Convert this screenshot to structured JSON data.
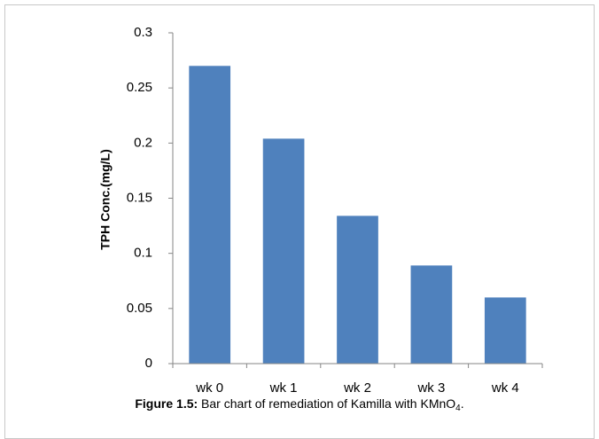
{
  "chart_data": {
    "type": "bar",
    "y_label": "TPH  Conc.(mg/L)",
    "categories": [
      "wk 0",
      "wk 1",
      "wk 2",
      "wk 3",
      "wk 4"
    ],
    "values": [
      0.27,
      0.204,
      0.134,
      0.089,
      0.06
    ],
    "color": "#4f81bd",
    "ylim": [
      0,
      0.3
    ],
    "yticks": [
      0,
      0.05,
      0.1,
      0.15,
      0.2,
      0.25,
      0.3
    ],
    "grid": false,
    "caption": {
      "label": "Figure 1.5:",
      "text": "Bar chart of remediation of Kamilla with KMnO",
      "subscript": "4",
      "suffix": "."
    }
  }
}
